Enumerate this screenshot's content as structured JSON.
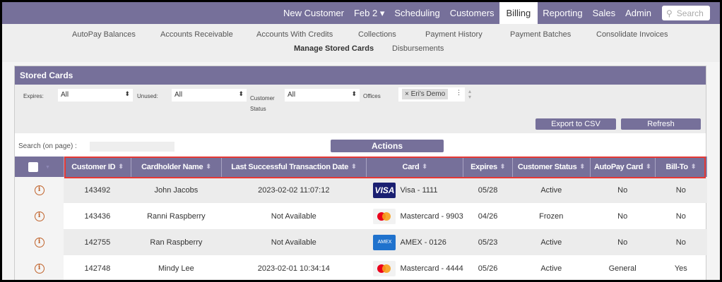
{
  "topnav": {
    "items": [
      "New Customer",
      "Feb 2 ▾",
      "Scheduling",
      "Customers",
      "Billing",
      "Reporting",
      "Sales",
      "Admin"
    ],
    "active": "Billing",
    "search_placeholder": "Search"
  },
  "subnav": {
    "items": [
      "AutoPay Balances",
      "Accounts Receivable",
      "Accounts With Credits",
      "Collections",
      "Payment History",
      "Payment Batches",
      "Consolidate Invoices",
      "Manage Stored Cards",
      "Disbursements"
    ],
    "active": "Manage Stored Cards"
  },
  "panel": {
    "title": "Stored Cards",
    "filters": {
      "expires_label": "Expires:",
      "expires_value": "All",
      "unused_label": "Unused:",
      "unused_value": "All",
      "status_label": "Customer Status",
      "status_value": "All",
      "offices_label": "Offices",
      "offices_tag": "× Eri's Demo"
    },
    "export_label": "Export to CSV",
    "refresh_label": "Refresh",
    "search_label": "Search (on page) :",
    "actions_label": "Actions"
  },
  "table": {
    "columns": [
      "Customer ID",
      "Cardholder Name",
      "Last Successful Transaction Date",
      "Card",
      "Expires",
      "Customer Status",
      "AutoPay Card",
      "Bill-To"
    ],
    "rows": [
      {
        "id": "143492",
        "name": "John Jacobs",
        "last": "2023-02-02 11:07:12",
        "brand": "visa",
        "brand_text": "VISA",
        "card": "Visa - 1111",
        "expires": "05/28",
        "status": "Active",
        "autopay": "No",
        "billto": "No"
      },
      {
        "id": "143436",
        "name": "Ranni Raspberry",
        "last": "Not Available",
        "brand": "mc",
        "brand_text": "",
        "card": "Mastercard - 9903",
        "expires": "04/26",
        "status": "Frozen",
        "autopay": "No",
        "billto": "No"
      },
      {
        "id": "142755",
        "name": "Ran Raspberry",
        "last": "Not Available",
        "brand": "amex",
        "brand_text": "AMEX",
        "card": "AMEX - 0126",
        "expires": "05/23",
        "status": "Active",
        "autopay": "No",
        "billto": "No"
      },
      {
        "id": "142748",
        "name": "Mindy Lee",
        "last": "2023-02-01 10:34:14",
        "brand": "mc",
        "brand_text": "",
        "card": "Mastercard - 4444",
        "expires": "05/26",
        "status": "Active",
        "autopay": "General",
        "billto": "Yes"
      }
    ]
  },
  "colors": {
    "brand": "#76709a",
    "highlight": "#e53935",
    "info": "#c0622a"
  }
}
